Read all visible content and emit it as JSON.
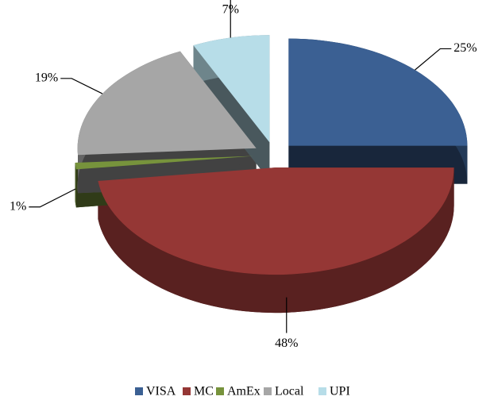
{
  "chart_data": {
    "type": "pie",
    "categories": [
      "VISA",
      "MC",
      "AmEx",
      "Local",
      "UPI"
    ],
    "values": [
      25,
      48,
      1,
      19,
      7
    ],
    "value_labels": [
      "25%",
      "48%",
      "1%",
      "19%",
      "7%"
    ],
    "colors": [
      "#3b6093",
      "#953735",
      "#77933c",
      "#a6a6a6",
      "#b7dde8"
    ],
    "legend": "bottom"
  }
}
